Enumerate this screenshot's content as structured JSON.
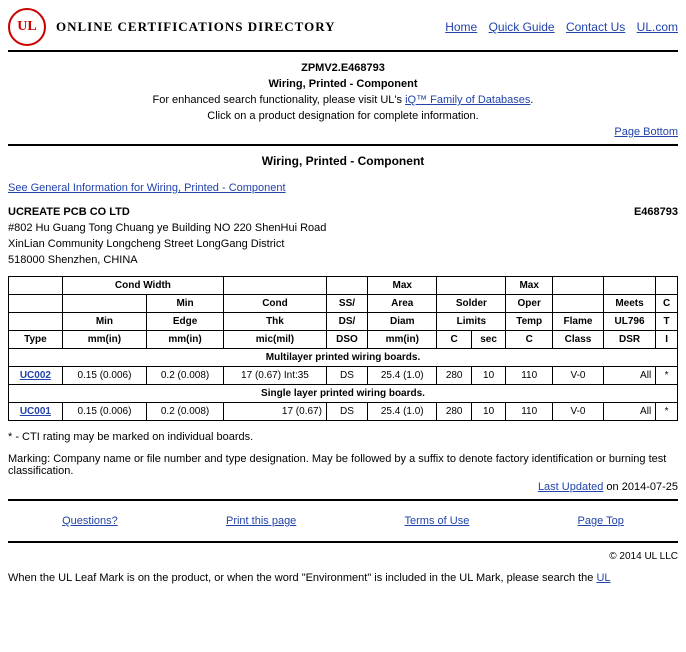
{
  "header": {
    "directory_title": "ONLINE CERTIFICATIONS DIRECTORY",
    "links": {
      "home": "Home",
      "quick_guide": "Quick Guide",
      "contact_us": "Contact Us",
      "ul_com": "UL.com"
    }
  },
  "doc": {
    "ref_code": "ZPMV2.E468793",
    "sub_title": "Wiring, Printed - Component",
    "enhanced_prefix": "For enhanced search functionality, please visit UL's ",
    "enhanced_link": "iQ™ Family of Databases",
    "enhanced_suffix": ".",
    "click_info": "Click on a product designation for complete information.",
    "page_bottom": "Page Bottom"
  },
  "section_title": "Wiring, Printed - Component",
  "general_info_link": "See General Information for Wiring, Printed - Component",
  "company": {
    "name": "UCREATE PCB CO LTD",
    "file_no": "E468793",
    "addr1": "#802 Hu Guang Tong Chuang ye Building NO 220 ShenHui Road",
    "addr2": "XinLian Community Longcheng Street LongGang District",
    "addr3": "518000 Shenzhen, CHINA"
  },
  "table": {
    "h1": {
      "cond_width": "Cond Width",
      "max1": "Max",
      "max2": "Max"
    },
    "h2": {
      "min": "Min",
      "cond": "Cond",
      "ss": "SS/",
      "area": "Area",
      "solder": "Solder",
      "oper": "Oper",
      "meets": "Meets",
      "c": "C"
    },
    "h3": {
      "min": "Min",
      "edge": "Edge",
      "thk": "Thk",
      "ds": "DS/",
      "diam": "Diam",
      "limits": "Limits",
      "temp": "Temp",
      "flame": "Flame",
      "ul796": "UL796",
      "t": "T"
    },
    "h4": {
      "type": "Type",
      "mmin1": "mm(in)",
      "mmin2": "mm(in)",
      "micmil": "mic(mil)",
      "dso": "DSO",
      "mmin3": "mm(in)",
      "c": "C",
      "sec": "sec",
      "c2": "C",
      "class": "Class",
      "dsr": "DSR",
      "i": "I"
    },
    "sub1": "Multilayer printed wiring boards.",
    "row1": {
      "type": "UC002",
      "min": "0.15 (0.006)",
      "edge": "0.2 (0.008)",
      "thk": "17 (0.67) Int:35",
      "ds": "DS",
      "diam": "25.4 (1.0)",
      "c": "280",
      "sec": "10",
      "temp": "110",
      "flame": "V-0",
      "dsr": "All",
      "ct": "*"
    },
    "sub2": "Single layer printed wiring boards.",
    "row2": {
      "type": "UC001",
      "min": "0.15 (0.006)",
      "edge": "0.2 (0.008)",
      "thk": "17 (0.67)",
      "ds": "DS",
      "diam": "25.4 (1.0)",
      "c": "280",
      "sec": "10",
      "temp": "110",
      "flame": "V-0",
      "dsr": "All",
      "ct": "*"
    }
  },
  "notes": {
    "cti": "* - CTI rating may be marked on individual boards.",
    "marking": "Marking: Company name or file number and type designation. May be followed by a suffix to denote factory identification or burning test classification.",
    "last_updated_label": "Last Updated",
    "last_updated_date": " on 2014-07-25"
  },
  "footer": {
    "questions": "Questions?",
    "print": "Print this page",
    "terms": "Terms of Use",
    "page_top": "Page Top",
    "copyright": "© 2014 UL LLC",
    "leaf_prefix": "When the UL Leaf Mark is on the product, or when the word \"Environment\" is included in the UL Mark, please search the ",
    "leaf_link": "UL"
  }
}
